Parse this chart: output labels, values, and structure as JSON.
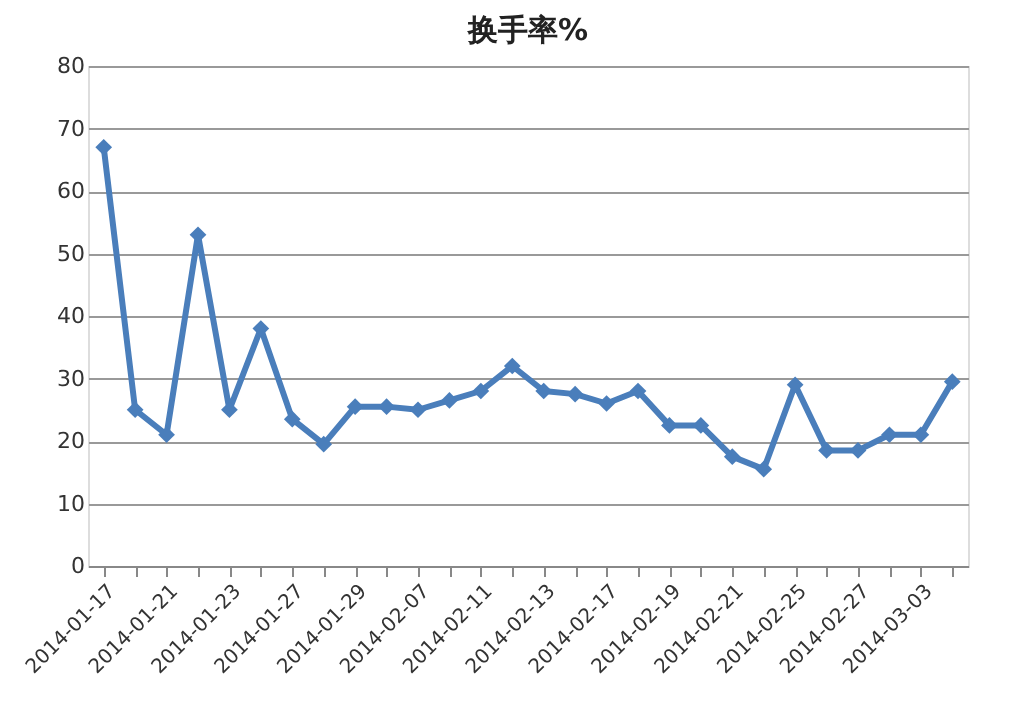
{
  "chart_data": {
    "type": "line",
    "title": "换手率%",
    "categories": [
      "2014-01-17",
      null,
      "2014-01-21",
      null,
      "2014-01-23",
      null,
      "2014-01-27",
      null,
      "2014-01-29",
      null,
      "2014-02-07",
      null,
      "2014-02-11",
      null,
      "2014-02-13",
      null,
      "2014-02-17",
      null,
      "2014-02-19",
      null,
      "2014-02-21",
      null,
      "2014-02-25",
      null,
      "2014-02-27",
      null,
      "2014-03-03",
      null
    ],
    "series": [
      {
        "color": "#4a7ebb",
        "values": [
          67,
          25,
          21,
          53,
          25,
          38,
          23.5,
          19.5,
          25.5,
          25.5,
          25,
          26.5,
          28,
          32,
          28,
          27.5,
          26,
          28,
          22.5,
          22.5,
          17.5,
          15.5,
          29,
          18.5,
          18.5,
          21,
          21,
          29.5
        ]
      }
    ],
    "ylim": [
      0,
      80
    ],
    "yticks": [
      0,
      10,
      20,
      30,
      40,
      50,
      60,
      70,
      80
    ],
    "grid": "y",
    "marker": "diamond",
    "line_style": "solid"
  }
}
